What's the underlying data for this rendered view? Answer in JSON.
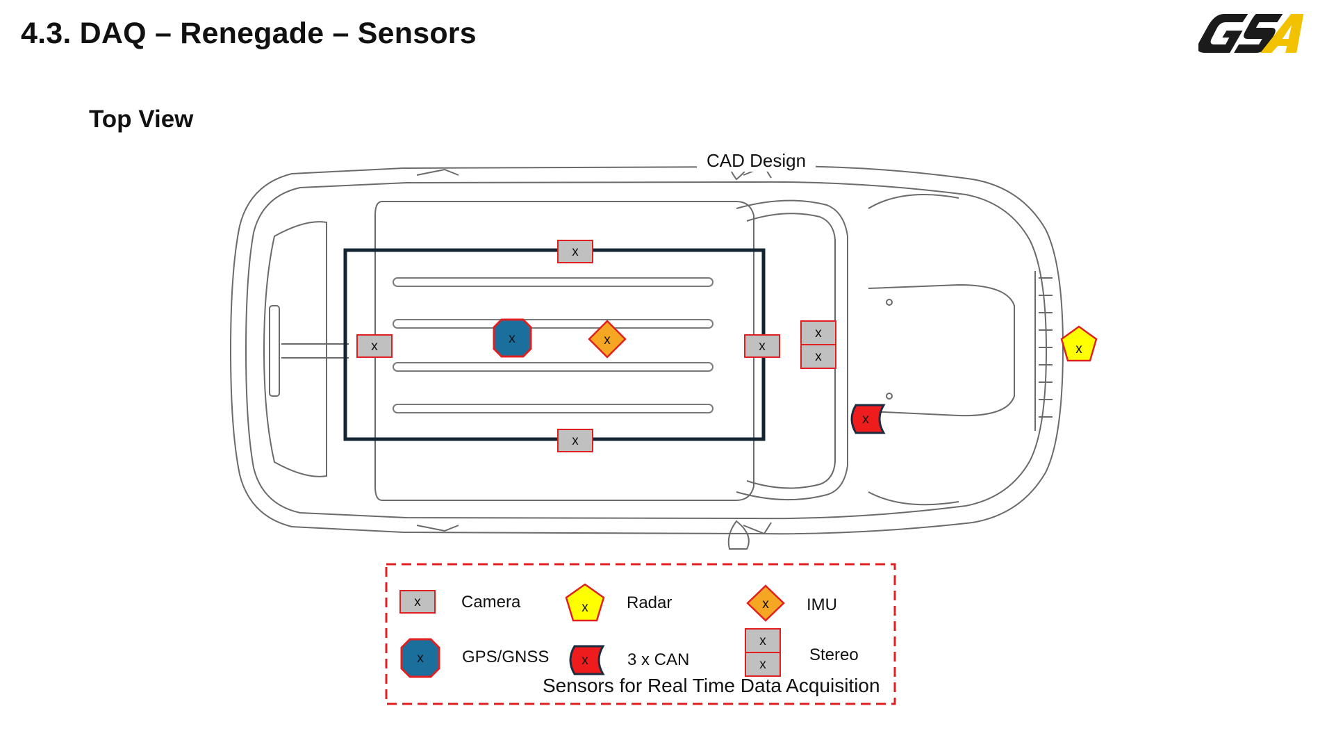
{
  "slide": {
    "title": "4.3. DAQ – Renegade – Sensors",
    "subtitle": "Top View",
    "cad_label": "CAD Design",
    "logo_text": "GSA",
    "brand_colors": {
      "logo_dark": "#1b1b1b",
      "logo_yellow": "#f2c200"
    }
  },
  "sensor_mark": "x",
  "legend": {
    "camera": "Camera",
    "radar": "Radar",
    "imu": "IMU",
    "gps": "GPS/GNSS",
    "can": "3 x CAN",
    "stereo": "Stereo",
    "caption": "Sensors for Real Time Data Acquisition"
  },
  "colors": {
    "camera_fill": "#c0c0c0",
    "sensor_border": "#e02020",
    "radar_fill": "#ffff00",
    "imu_fill": "#f5a623",
    "gps_fill": "#1b6f9c",
    "can_fill": "#ee1c1c",
    "can_border": "#1a2c3f",
    "roof_frame": "#142433",
    "legend_border": "#e02020"
  }
}
